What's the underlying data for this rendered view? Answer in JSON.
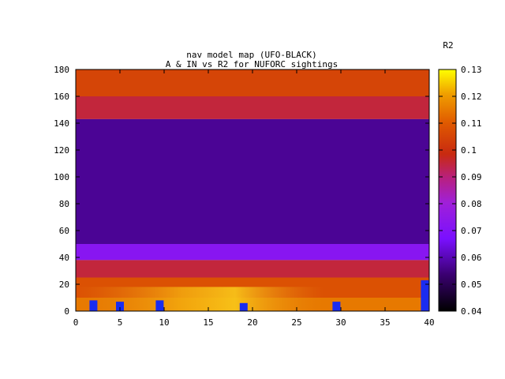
{
  "chart_data": {
    "type": "heatmap",
    "title": "nav model map (UFO-BLACK)",
    "subtitle": "A & IN vs R2 for NUFORC sightings",
    "xlabel": "",
    "ylabel": "",
    "xlim": [
      0,
      40
    ],
    "ylim": [
      0,
      180
    ],
    "x_ticks": [
      "0",
      "5",
      "10",
      "15",
      "20",
      "25",
      "30",
      "35",
      "40"
    ],
    "y_ticks": [
      "0",
      "20",
      "40",
      "60",
      "80",
      "100",
      "120",
      "140",
      "160",
      "180"
    ],
    "colorbar": {
      "label": "R2",
      "range": [
        0.04,
        0.13
      ],
      "ticks": [
        "0.04",
        "0.05",
        "0.06",
        "0.07",
        "0.08",
        "0.09",
        "0.1",
        "0.11",
        "0.12",
        "0.13"
      ]
    },
    "grid": false,
    "regions": [
      {
        "y_range": [
          160,
          180
        ],
        "r2": 0.105
      },
      {
        "y_range": [
          143,
          160
        ],
        "r2": 0.095
      },
      {
        "y_range": [
          50,
          143
        ],
        "r2": 0.057
      },
      {
        "y_range": [
          38,
          50
        ],
        "r2": 0.072
      },
      {
        "y_range": [
          25,
          38
        ],
        "r2": 0.095
      },
      {
        "y_range": [
          10,
          25
        ],
        "r2": 0.108
      },
      {
        "y_range": [
          0,
          10
        ],
        "r2": 0.115
      }
    ],
    "low_markers": [
      {
        "x": 2,
        "y_range": [
          0,
          8
        ],
        "r2": 0.058
      },
      {
        "x": 5,
        "y_range": [
          0,
          7
        ],
        "r2": 0.058
      },
      {
        "x": 9.5,
        "y_range": [
          0,
          8
        ],
        "r2": 0.058
      },
      {
        "x": 19,
        "y_range": [
          0,
          6
        ],
        "r2": 0.058
      },
      {
        "x": 29.5,
        "y_range": [
          0,
          7
        ],
        "r2": 0.058
      },
      {
        "x": 39.5,
        "y_range": [
          0,
          23
        ],
        "r2": 0.058
      }
    ]
  }
}
